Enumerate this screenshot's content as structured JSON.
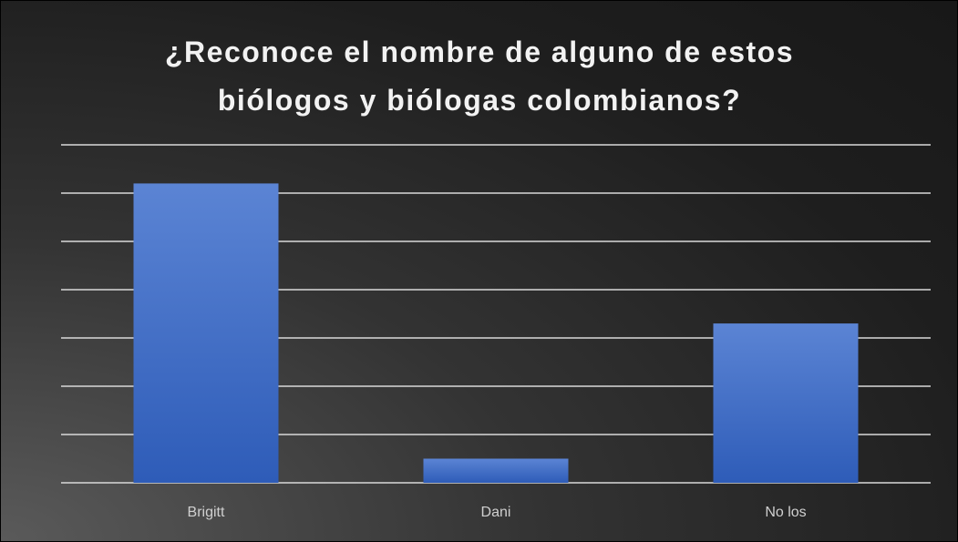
{
  "chart_data": {
    "type": "bar",
    "title": "¿Reconoce el nombre de alguno de estos biólogos y biólogas colombianos?",
    "categories": [
      "Brigitt",
      "Dani",
      "No los"
    ],
    "values": [
      6.2,
      0.5,
      3.3
    ],
    "color": "#4a74cc",
    "ylim": [
      0,
      7
    ],
    "yticks": [
      0,
      1,
      2,
      3,
      4,
      5,
      6,
      7
    ],
    "grid": true
  }
}
